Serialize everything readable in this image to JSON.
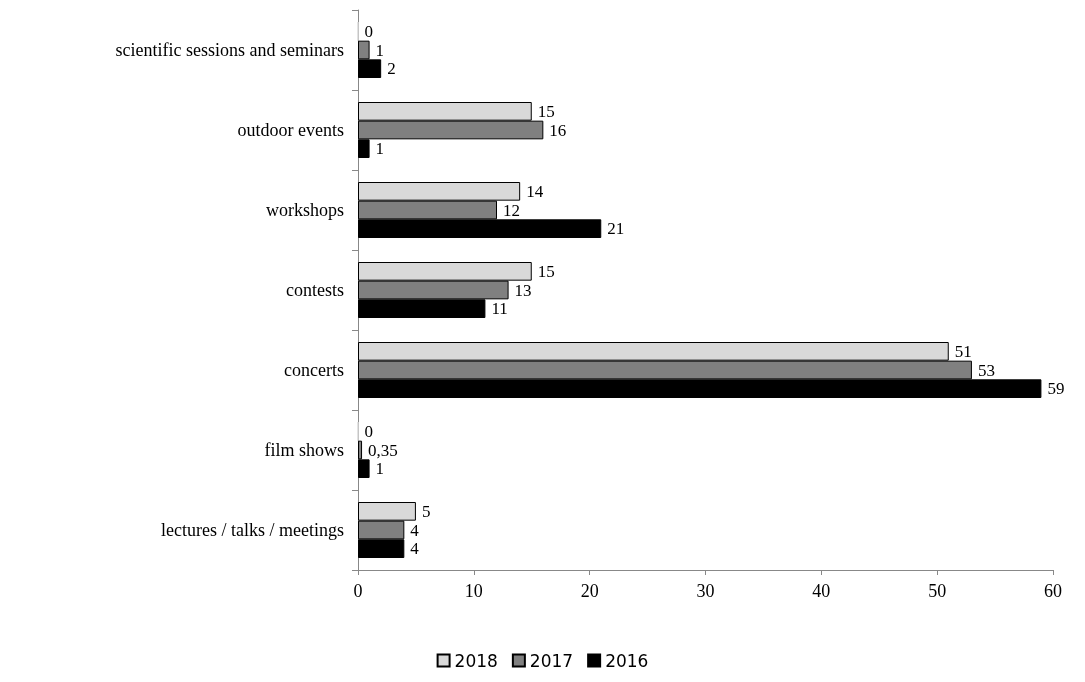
{
  "chart_data": {
    "type": "bar",
    "orientation": "horizontal",
    "categories": [
      "scientific sessions and seminars",
      "outdoor events",
      "workshops",
      "contests",
      "concerts",
      "film shows",
      "lectures / talks / meetings"
    ],
    "series": [
      {
        "name": "2018",
        "color": "#d9d9d9",
        "values": [
          0,
          15,
          14,
          15,
          51,
          0,
          5
        ],
        "value_labels": [
          "0",
          "15",
          "14",
          "15",
          "51",
          "0",
          "5"
        ]
      },
      {
        "name": "2017",
        "color": "#808080",
        "values": [
          1,
          16,
          12,
          13,
          53,
          0.35,
          4
        ],
        "value_labels": [
          "1",
          "16",
          "12",
          "13",
          "53",
          "0,35",
          "4"
        ]
      },
      {
        "name": "2016",
        "color": "#000000",
        "values": [
          2,
          1,
          21,
          11,
          59,
          1,
          4
        ],
        "value_labels": [
          "2",
          "1",
          "21",
          "11",
          "59",
          "1",
          "4"
        ]
      }
    ],
    "xlim": [
      0,
      60
    ],
    "xticks": [
      0,
      10,
      20,
      30,
      40,
      50,
      60
    ],
    "grid": false,
    "legend": "bottom"
  }
}
